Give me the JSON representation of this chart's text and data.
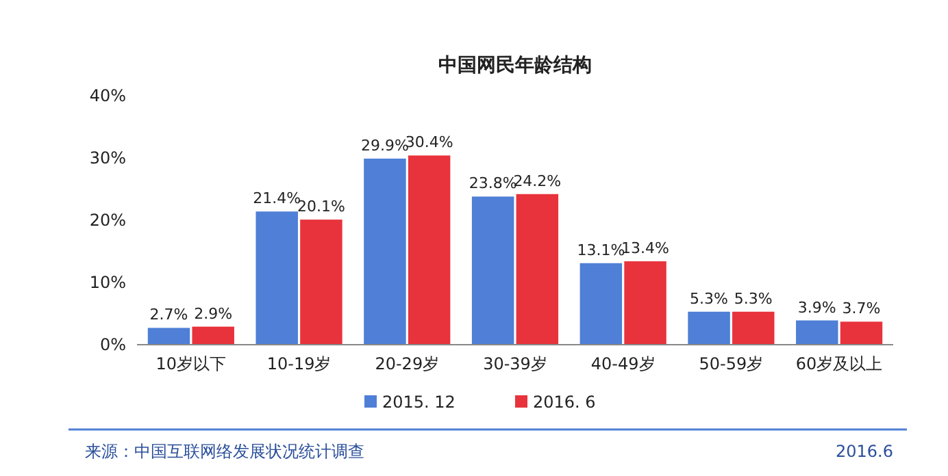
{
  "chart_data": {
    "type": "bar",
    "title": "中国网民年龄结构",
    "categories": [
      "10岁以下",
      "10-19岁",
      "20-29岁",
      "30-39岁",
      "40-49岁",
      "50-59岁",
      "60岁及以上"
    ],
    "series": [
      {
        "name": "2015. 12",
        "color": "#4f7fd6",
        "values": [
          2.7,
          21.4,
          29.9,
          23.8,
          13.1,
          5.3,
          3.9
        ],
        "value_labels": [
          "2.7%",
          "21.4%",
          "29.9%",
          "23.8%",
          "13.1%",
          "5.3%",
          "3.9%"
        ]
      },
      {
        "name": "2016. 6",
        "color": "#e8333c",
        "values": [
          2.9,
          20.1,
          30.4,
          24.2,
          13.4,
          5.3,
          3.7
        ],
        "value_labels": [
          "2.9%",
          "20.1%",
          "30.4%",
          "24.2%",
          "13.4%",
          "5.3%",
          "3.7%"
        ]
      }
    ],
    "ylim": [
      0,
      40
    ],
    "yticks": [
      {
        "value": 0,
        "label": "0%"
      },
      {
        "value": 10,
        "label": "10%"
      },
      {
        "value": 20,
        "label": "20%"
      },
      {
        "value": 30,
        "label": "30%"
      },
      {
        "value": 40,
        "label": "40%"
      }
    ],
    "grid": false,
    "legend": "bottom",
    "annotations": [
      "来源：中国互联网络发展状况统计调查",
      "2016.6"
    ]
  }
}
